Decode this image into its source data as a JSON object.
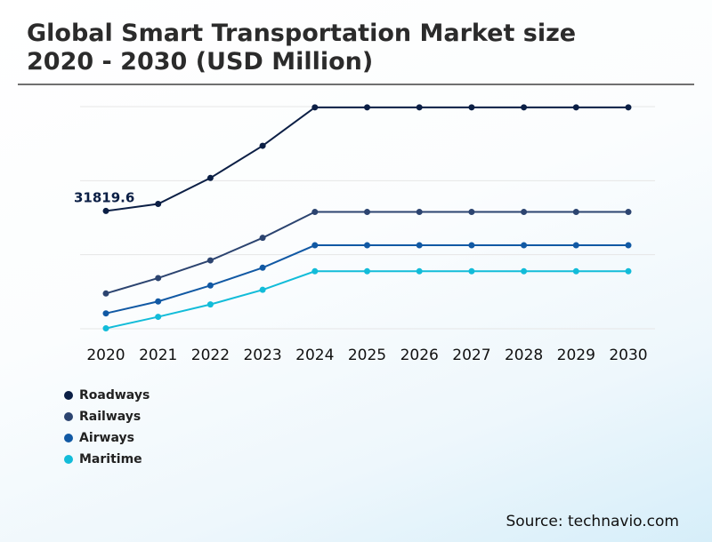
{
  "title_lines": [
    "Global Smart Transportation Market size",
    "2020 - 2030 (USD Million)"
  ],
  "source": "Source: technavio.com",
  "colors": {
    "roadways": "#0b1f45",
    "railways": "#2c4470",
    "airways": "#1159a4",
    "maritime": "#12bcd9",
    "grid": "#e6e6e6"
  },
  "chart_data": {
    "type": "line",
    "title": "Global Smart Transportation Market size 2020 - 2030 (USD Million)",
    "x": [
      "2020",
      "2021",
      "2022",
      "2023",
      "2024",
      "2025",
      "2026",
      "2027",
      "2028",
      "2029",
      "2030"
    ],
    "xlabel": "",
    "ylabel": "",
    "ylim": [
      0,
      60000
    ],
    "grid": true,
    "annotation": {
      "series": "Roadways",
      "x": "2020",
      "label": "31819.6"
    },
    "series": [
      {
        "name": "Roadways",
        "values": [
          31819.6,
          33720,
          40730,
          49420,
          59800,
          59800,
          59800,
          59800,
          59800,
          59800,
          59800
        ]
      },
      {
        "name": "Railways",
        "values": [
          9530,
          13690,
          18460,
          24560,
          31550,
          31550,
          31550,
          31550,
          31550,
          31550,
          31550
        ]
      },
      {
        "name": "Airways",
        "values": [
          4150,
          7380,
          11690,
          16490,
          22550,
          22550,
          22550,
          22550,
          22550,
          22550,
          22550
        ]
      },
      {
        "name": "Maritime",
        "values": [
          110,
          3220,
          6570,
          10520,
          15530,
          15530,
          15530,
          15530,
          15530,
          15530,
          15530
        ]
      }
    ]
  }
}
